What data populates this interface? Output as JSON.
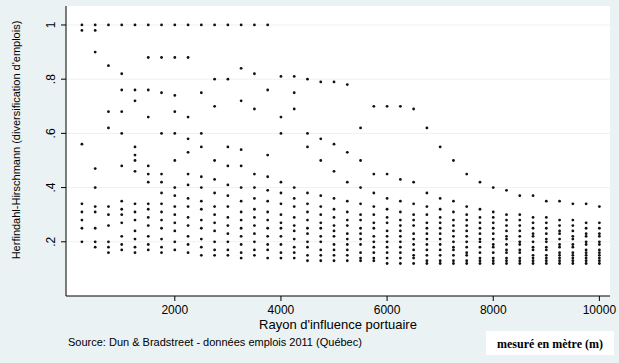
{
  "chart_data": {
    "type": "scatter",
    "x_label": "Rayon d'influence portuaire",
    "y_label": "Herfindahl-Hirschmann (diversification d'emplois)",
    "annotations": [
      "Source: Dun & Bradstreet - données emplois 2011 (Québec)",
      "mesuré en mètre (m)"
    ],
    "color": "#111111",
    "marker": "circle",
    "grid": true,
    "xlim": [
      -50,
      10200
    ],
    "xticks": [
      2000,
      4000,
      6000,
      8000,
      10000
    ],
    "ylim": [
      0,
      1.07
    ],
    "yticks": [
      {
        "value": 0.2,
        "label": ".2"
      },
      {
        "value": 0.4,
        "label": ".4"
      },
      {
        "value": 0.6,
        "label": ".6"
      },
      {
        "value": 0.8,
        "label": ".8"
      },
      1
    ],
    "x": [
      250,
      500,
      750,
      1000,
      1250,
      1500,
      1750,
      2000,
      2250,
      2500,
      2750,
      3000,
      3250,
      3500,
      3750,
      4000,
      4250,
      4500,
      4750,
      5000,
      5250,
      5500,
      5750,
      6000,
      6250,
      6500,
      6750,
      7000,
      7250,
      7500,
      7750,
      8000,
      8250,
      8500,
      8750,
      9000,
      9250,
      9500,
      9750,
      10000
    ],
    "values": [
      [
        1.0,
        0.98,
        0.56,
        0.34,
        0.31,
        0.28,
        0.25,
        0.2
      ],
      [
        1.0,
        0.98,
        0.9,
        0.47,
        0.4,
        0.33,
        0.31,
        0.25,
        0.2,
        0.18
      ],
      [
        1.0,
        0.85,
        0.68,
        0.62,
        0.33,
        0.3,
        0.26,
        0.2,
        0.18,
        0.16
      ],
      [
        1.0,
        0.82,
        0.76,
        0.68,
        0.6,
        0.48,
        0.35,
        0.32,
        0.3,
        0.27,
        0.22,
        0.19,
        0.17
      ],
      [
        1.0,
        0.76,
        0.72,
        0.55,
        0.52,
        0.5,
        0.46,
        0.34,
        0.31,
        0.28,
        0.24,
        0.21,
        0.18,
        0.16
      ],
      [
        1.0,
        0.88,
        0.76,
        0.66,
        0.48,
        0.45,
        0.42,
        0.34,
        0.32,
        0.29,
        0.26,
        0.22,
        0.19,
        0.17
      ],
      [
        1.0,
        0.88,
        0.75,
        0.6,
        0.45,
        0.42,
        0.38,
        0.34,
        0.31,
        0.28,
        0.25,
        0.21,
        0.18,
        0.16
      ],
      [
        1.0,
        0.88,
        0.74,
        0.68,
        0.6,
        0.5,
        0.4,
        0.37,
        0.33,
        0.3,
        0.27,
        0.24,
        0.2,
        0.17
      ],
      [
        1.0,
        0.88,
        0.66,
        0.58,
        0.53,
        0.45,
        0.41,
        0.36,
        0.33,
        0.29,
        0.26,
        0.22,
        0.19,
        0.16
      ],
      [
        1.0,
        0.75,
        0.6,
        0.55,
        0.44,
        0.4,
        0.35,
        0.32,
        0.28,
        0.25,
        0.21,
        0.18,
        0.15
      ],
      [
        1.0,
        0.8,
        0.7,
        0.5,
        0.43,
        0.38,
        0.33,
        0.3,
        0.27,
        0.24,
        0.2,
        0.17,
        0.15
      ],
      [
        1.0,
        0.8,
        0.55,
        0.48,
        0.41,
        0.37,
        0.33,
        0.29,
        0.26,
        0.23,
        0.2,
        0.17,
        0.15
      ],
      [
        1.0,
        0.84,
        0.72,
        0.54,
        0.48,
        0.4,
        0.35,
        0.31,
        0.28,
        0.25,
        0.22,
        0.19,
        0.16,
        0.14
      ],
      [
        1.0,
        0.82,
        0.69,
        0.45,
        0.4,
        0.36,
        0.32,
        0.29,
        0.26,
        0.23,
        0.2,
        0.17,
        0.15
      ],
      [
        1.0,
        0.76,
        0.52,
        0.44,
        0.39,
        0.35,
        0.31,
        0.28,
        0.25,
        0.22,
        0.19,
        0.17,
        0.14
      ],
      [
        0.81,
        0.66,
        0.6,
        0.42,
        0.38,
        0.34,
        0.3,
        0.27,
        0.25,
        0.22,
        0.19,
        0.16,
        0.14
      ],
      [
        0.81,
        0.75,
        0.69,
        0.4,
        0.36,
        0.33,
        0.29,
        0.26,
        0.24,
        0.21,
        0.18,
        0.16,
        0.14
      ],
      [
        0.8,
        0.6,
        0.55,
        0.38,
        0.34,
        0.31,
        0.28,
        0.25,
        0.23,
        0.2,
        0.18,
        0.15,
        0.13
      ],
      [
        0.79,
        0.58,
        0.5,
        0.37,
        0.33,
        0.3,
        0.27,
        0.25,
        0.22,
        0.2,
        0.17,
        0.15,
        0.13
      ],
      [
        0.79,
        0.56,
        0.46,
        0.36,
        0.32,
        0.29,
        0.26,
        0.24,
        0.22,
        0.19,
        0.17,
        0.15,
        0.13
      ],
      [
        0.78,
        0.53,
        0.42,
        0.35,
        0.31,
        0.28,
        0.26,
        0.23,
        0.21,
        0.19,
        0.17,
        0.15,
        0.13
      ],
      [
        0.62,
        0.5,
        0.4,
        0.34,
        0.3,
        0.28,
        0.25,
        0.23,
        0.21,
        0.19,
        0.16,
        0.14,
        0.13
      ],
      [
        0.7,
        0.45,
        0.38,
        0.33,
        0.3,
        0.27,
        0.25,
        0.22,
        0.2,
        0.18,
        0.16,
        0.14,
        0.13
      ],
      [
        0.7,
        0.45,
        0.36,
        0.32,
        0.29,
        0.27,
        0.24,
        0.22,
        0.2,
        0.18,
        0.16,
        0.14,
        0.12
      ],
      [
        0.7,
        0.43,
        0.35,
        0.31,
        0.28,
        0.26,
        0.24,
        0.22,
        0.2,
        0.18,
        0.16,
        0.14,
        0.12
      ],
      [
        0.69,
        0.42,
        0.34,
        0.3,
        0.28,
        0.26,
        0.23,
        0.21,
        0.19,
        0.17,
        0.15,
        0.14,
        0.12
      ],
      [
        0.62,
        0.38,
        0.33,
        0.3,
        0.27,
        0.25,
        0.23,
        0.21,
        0.19,
        0.17,
        0.15,
        0.13,
        0.12
      ],
      [
        0.55,
        0.36,
        0.32,
        0.29,
        0.27,
        0.25,
        0.23,
        0.21,
        0.19,
        0.17,
        0.15,
        0.13,
        0.12
      ],
      [
        0.5,
        0.35,
        0.31,
        0.28,
        0.26,
        0.24,
        0.22,
        0.2,
        0.18,
        0.17,
        0.15,
        0.13,
        0.12
      ],
      [
        0.45,
        0.33,
        0.3,
        0.28,
        0.26,
        0.24,
        0.22,
        0.2,
        0.18,
        0.16,
        0.15,
        0.13,
        0.12
      ],
      [
        0.42,
        0.32,
        0.29,
        0.27,
        0.25,
        0.23,
        0.21,
        0.2,
        0.18,
        0.16,
        0.14,
        0.13,
        0.12
      ],
      [
        0.4,
        0.31,
        0.29,
        0.27,
        0.25,
        0.23,
        0.21,
        0.19,
        0.18,
        0.16,
        0.14,
        0.13,
        0.12
      ],
      [
        0.39,
        0.3,
        0.28,
        0.26,
        0.24,
        0.22,
        0.21,
        0.19,
        0.17,
        0.16,
        0.14,
        0.13,
        0.12
      ],
      [
        0.37,
        0.3,
        0.28,
        0.26,
        0.24,
        0.22,
        0.2,
        0.19,
        0.17,
        0.16,
        0.14,
        0.13,
        0.12
      ],
      [
        0.37,
        0.29,
        0.27,
        0.25,
        0.23,
        0.22,
        0.2,
        0.18,
        0.17,
        0.15,
        0.14,
        0.13,
        0.12
      ],
      [
        0.35,
        0.29,
        0.27,
        0.25,
        0.23,
        0.21,
        0.2,
        0.18,
        0.17,
        0.15,
        0.14,
        0.13,
        0.12
      ],
      [
        0.35,
        0.28,
        0.26,
        0.24,
        0.23,
        0.21,
        0.19,
        0.18,
        0.16,
        0.15,
        0.14,
        0.13,
        0.12
      ],
      [
        0.34,
        0.28,
        0.26,
        0.24,
        0.22,
        0.21,
        0.19,
        0.18,
        0.16,
        0.15,
        0.14,
        0.13,
        0.12
      ],
      [
        0.34,
        0.27,
        0.25,
        0.23,
        0.22,
        0.2,
        0.19,
        0.17,
        0.16,
        0.15,
        0.14,
        0.13,
        0.12
      ],
      [
        0.33,
        0.27,
        0.25,
        0.23,
        0.22,
        0.2,
        0.19,
        0.17,
        0.16,
        0.15,
        0.14,
        0.13,
        0.12
      ]
    ]
  }
}
